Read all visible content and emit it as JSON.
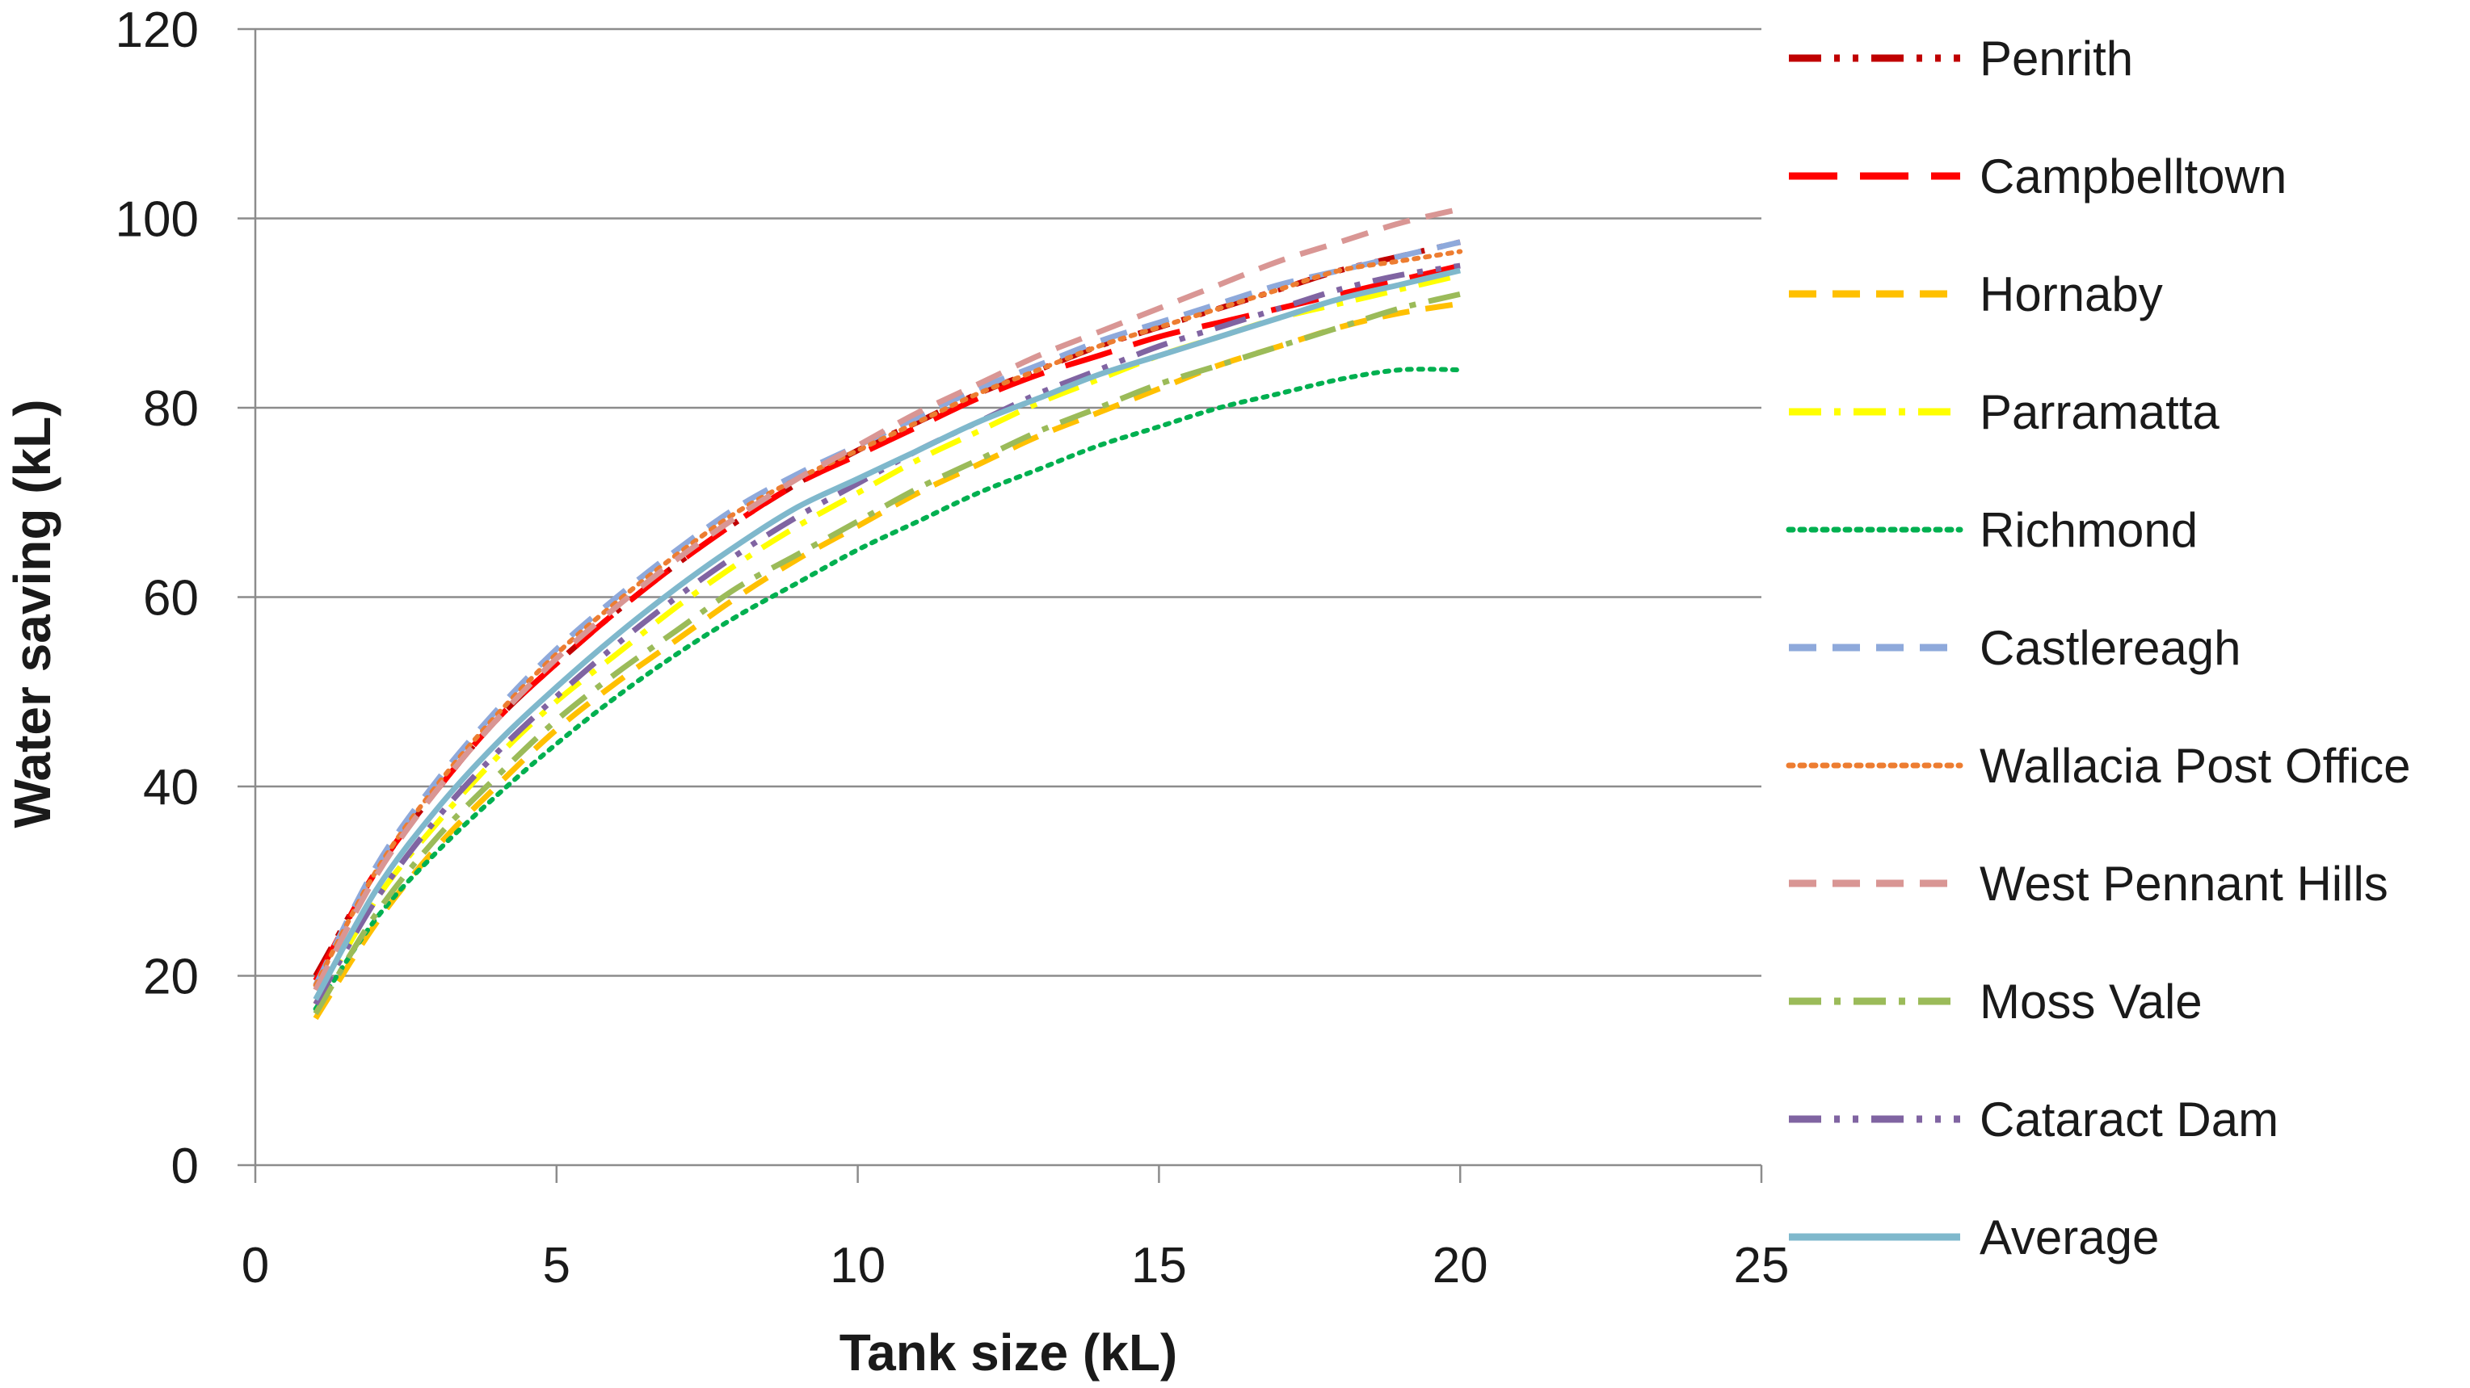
{
  "chart_data": {
    "type": "line",
    "title": "",
    "xlabel": "Tank size (kL)",
    "ylabel": "Water saving (kL)",
    "xlim": [
      0,
      25
    ],
    "ylim": [
      0,
      120
    ],
    "xticks": [
      0,
      5,
      10,
      15,
      20,
      25
    ],
    "yticks": [
      0,
      20,
      40,
      60,
      80,
      100,
      120
    ],
    "grid": "horizontal",
    "legend_position": "right",
    "x": [
      1,
      2,
      3,
      4,
      5,
      6,
      7,
      8,
      9,
      10,
      11,
      12,
      13,
      14,
      15,
      16,
      17,
      18,
      19,
      20
    ],
    "series": [
      {
        "name": "Penrith",
        "color": "#c00000",
        "dash": "dash-dot-dot",
        "values": [
          20,
          31,
          39.5,
          47,
          53,
          58.5,
          63.5,
          68,
          72,
          75.5,
          78.5,
          81.5,
          84,
          86.5,
          88.5,
          90.5,
          92.5,
          94.5,
          96,
          97.5
        ]
      },
      {
        "name": "Campbelltown",
        "color": "#ff0000",
        "dash": "long-dash",
        "values": [
          19.5,
          31,
          39.5,
          47,
          53,
          58.5,
          63.5,
          68,
          72,
          75,
          78,
          81,
          83.5,
          85.5,
          87.5,
          89,
          90.5,
          92,
          93.5,
          95
        ]
      },
      {
        "name": "Hornaby",
        "color": "#ffc000",
        "dash": "dash",
        "values": [
          15.5,
          25.5,
          33.5,
          40,
          46,
          51,
          55.5,
          60,
          64,
          67.5,
          71,
          74,
          77,
          79.5,
          82,
          84.5,
          86.5,
          88.5,
          90,
          91
        ]
      },
      {
        "name": "Parramatta",
        "color": "#ffff00",
        "dash": "dash-dot",
        "values": [
          17,
          28,
          36,
          43,
          49,
          54,
          59,
          63.5,
          67.5,
          71,
          74.5,
          77.5,
          80.5,
          83,
          85.5,
          87.5,
          89.5,
          91,
          92.5,
          94
        ]
      },
      {
        "name": "Richmond",
        "color": "#00b050",
        "dash": "dot",
        "values": [
          16.5,
          26,
          33,
          39,
          44.5,
          49.5,
          54,
          58,
          61.5,
          65,
          68,
          71,
          73.5,
          76,
          78,
          80,
          81.5,
          83,
          84,
          84
        ]
      },
      {
        "name": "Castlereagh",
        "color": "#8ea9db",
        "dash": "dash",
        "values": [
          19,
          31.5,
          40.5,
          48,
          54.5,
          60,
          65,
          69.5,
          73,
          76,
          79,
          82,
          84.5,
          87,
          89,
          91,
          93,
          94.5,
          96,
          97.5
        ]
      },
      {
        "name": "Wallacia Post Office",
        "color": "#ed7d31",
        "dash": "dot",
        "values": [
          19,
          31,
          40,
          47.5,
          54,
          59.5,
          64.5,
          69,
          72.5,
          75.5,
          78.5,
          81.5,
          84,
          86.5,
          88.5,
          90.5,
          92.5,
          94.5,
          95.5,
          96.5
        ]
      },
      {
        "name": "West Pennant Hills",
        "color": "#d99694",
        "dash": "dash",
        "values": [
          18.5,
          30.5,
          39.5,
          47,
          53.5,
          59,
          64,
          68.5,
          72.5,
          76,
          79.5,
          82.5,
          85.5,
          88,
          90.5,
          93,
          95.5,
          97.5,
          99.5,
          101
        ]
      },
      {
        "name": "Moss Vale",
        "color": "#9bbb59",
        "dash": "dash-dot",
        "values": [
          16,
          26.5,
          34.5,
          41,
          47,
          52,
          56.5,
          61,
          64.5,
          68,
          71.5,
          74.5,
          77.5,
          80,
          82.5,
          84.5,
          86.5,
          88.5,
          90.5,
          92
        ]
      },
      {
        "name": "Cataract Dam",
        "color": "#8064a2",
        "dash": "dash-dot-dot",
        "values": [
          17,
          28,
          36.5,
          43.5,
          49.5,
          55,
          60,
          64.5,
          68.5,
          72,
          75.5,
          78.5,
          81.5,
          84,
          86.5,
          88.5,
          90.5,
          92.5,
          94,
          95
        ]
      },
      {
        "name": "Average",
        "color": "#7fb8cc",
        "dash": "solid",
        "values": [
          17.5,
          29,
          37.5,
          44.5,
          50.5,
          56,
          61,
          65.5,
          69.5,
          72.5,
          75.5,
          78.5,
          81,
          83.5,
          85.5,
          87.5,
          89.5,
          91.5,
          93,
          94.5
        ]
      }
    ]
  }
}
